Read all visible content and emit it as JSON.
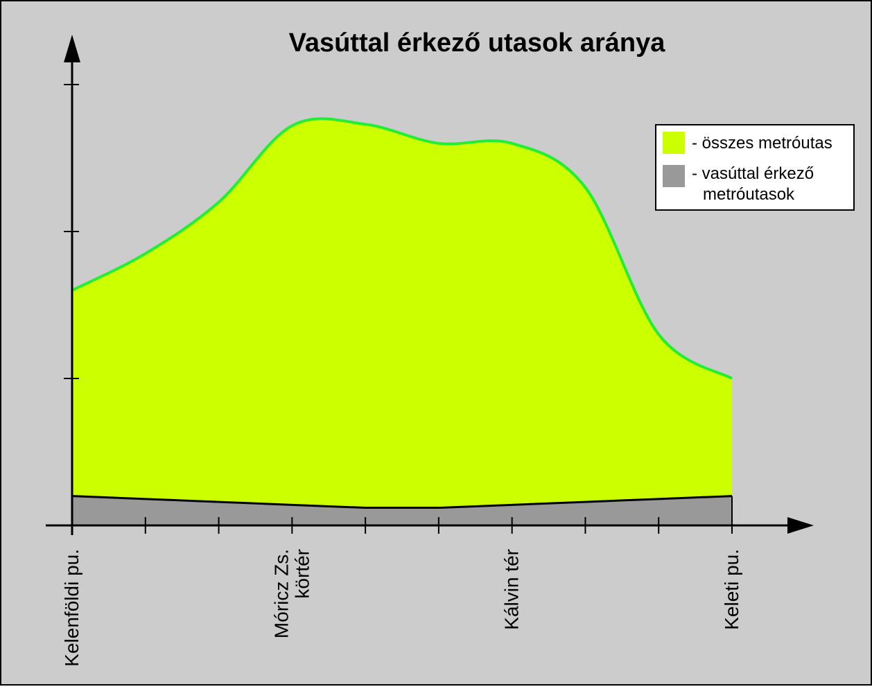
{
  "chart_data": {
    "type": "area",
    "title": "Vasúttal érkező utasok aránya",
    "xlabel": "",
    "ylabel": "",
    "x": [
      0,
      1,
      2,
      3,
      4,
      5,
      6,
      7,
      8,
      9
    ],
    "ylim": [
      0,
      3
    ],
    "y_ticks": [
      1,
      2,
      3
    ],
    "x_tick_positions": [
      0,
      1,
      2,
      3,
      4,
      5,
      6,
      7,
      8,
      9
    ],
    "stations": [
      {
        "x": 0,
        "label": "Kelenföldi pu."
      },
      {
        "x": 3,
        "label": "Móricz Zs.\nkörtér"
      },
      {
        "x": 6,
        "label": "Kálvin tér"
      },
      {
        "x": 9,
        "label": "Keleti pu."
      }
    ],
    "series": [
      {
        "name": "- összes metróutas",
        "color": "#ccff00",
        "stroke": "#22ee33",
        "values": [
          1.6,
          1.85,
          2.2,
          2.72,
          2.73,
          2.6,
          2.6,
          2.3,
          1.3,
          1.0
        ]
      },
      {
        "name": "- vasúttal érkező\nmetróutasok",
        "color": "#999999",
        "stroke": "#000000",
        "values": [
          0.2,
          0.18,
          0.16,
          0.14,
          0.12,
          0.12,
          0.14,
          0.16,
          0.18,
          0.2
        ]
      }
    ],
    "legend": "top-right",
    "grid": false,
    "background": "#cccccc"
  }
}
